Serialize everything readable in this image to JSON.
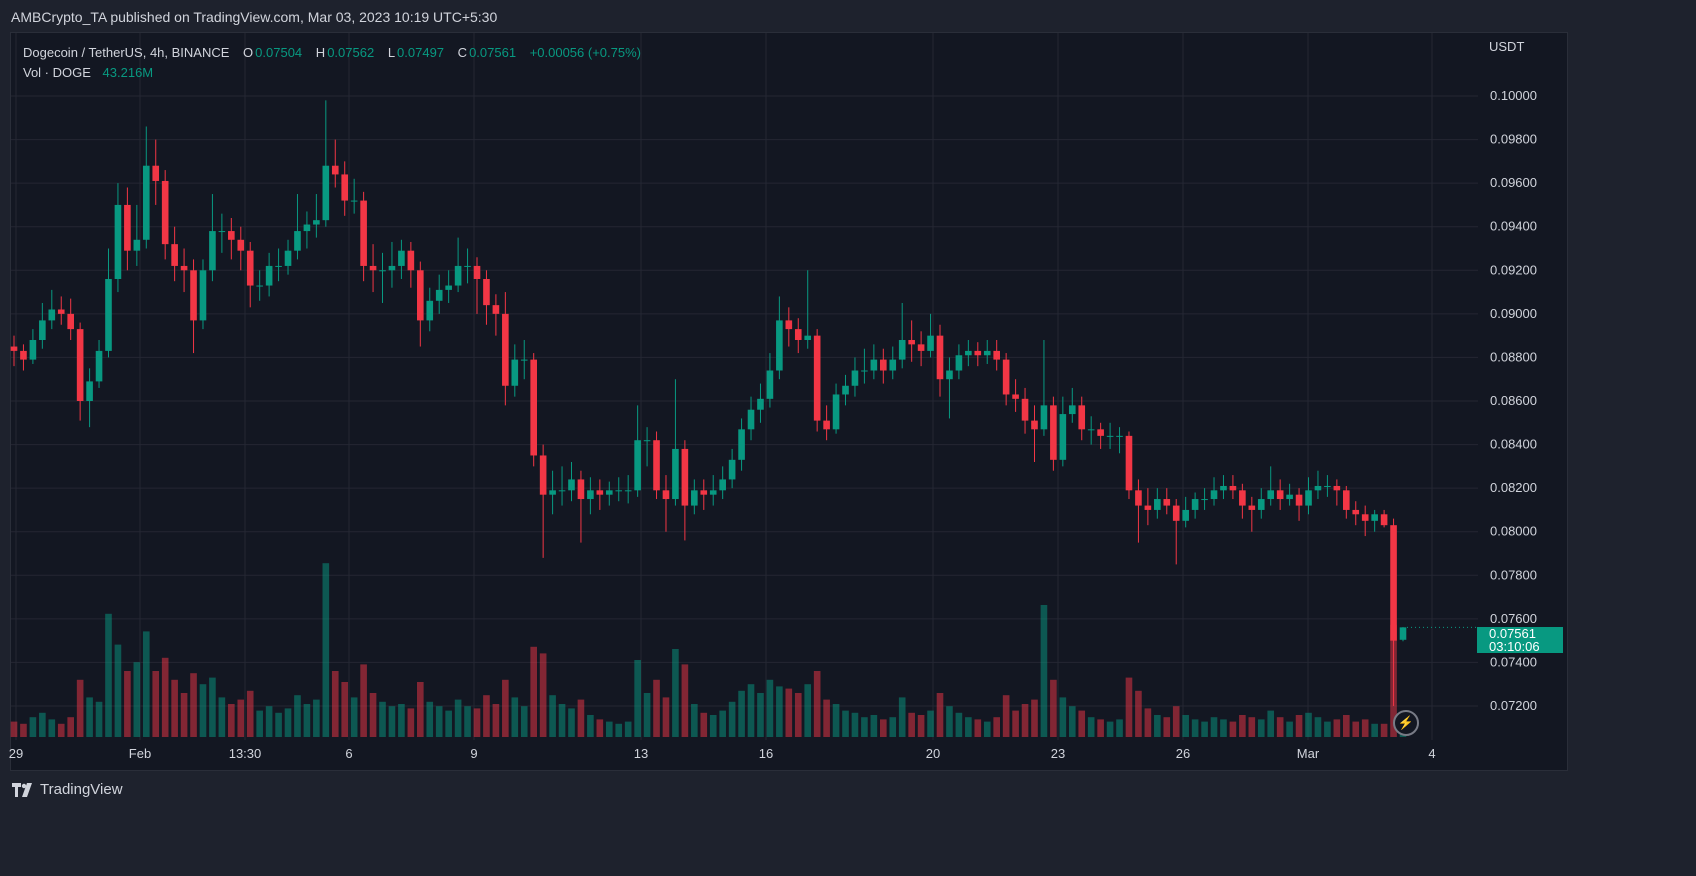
{
  "header": {
    "published": "AMBCrypto_TA published on TradingView.com, Mar 03, 2023 10:19 UTC+5:30"
  },
  "legend": {
    "symbol": "Dogecoin / TetherUS, 4h, BINANCE",
    "o_label": "O",
    "o": "0.07504",
    "h_label": "H",
    "h": "0.07562",
    "l_label": "L",
    "l": "0.07497",
    "c_label": "C",
    "c": "0.07561",
    "change": "+0.00056 (+0.75%)",
    "vol_label": "Vol · DOGE",
    "vol": "43.216M"
  },
  "price_axis": {
    "currency": "USDT",
    "current_price": "0.07561",
    "countdown": "03:10:06"
  },
  "footer": {
    "brand": "TradingView"
  },
  "colors": {
    "up": "#089981",
    "down": "#f23645",
    "background": "#131722",
    "grid": "#242733"
  },
  "icons": {
    "lightning": "lightning-icon",
    "logo": "tradingview-logo"
  },
  "chart_data": {
    "type": "candlestick",
    "title": "Dogecoin / TetherUS, 4h, BINANCE",
    "ylabel": "USDT",
    "ylim": [
      0.0707,
      0.1022
    ],
    "y_ticks": [
      "0.07200",
      "0.07400",
      "0.07600",
      "0.07800",
      "0.08000",
      "0.08200",
      "0.08400",
      "0.08600",
      "0.08800",
      "0.09000",
      "0.09200",
      "0.09400",
      "0.09600",
      "0.09800",
      "0.10000"
    ],
    "x_ticks": [
      "29",
      "Feb",
      "13:30",
      "6",
      "9",
      "13",
      "16",
      "20",
      "23",
      "26",
      "Mar",
      "4"
    ],
    "grid": true,
    "volume_unit": "M DOGE (approx.)",
    "candles_fields": [
      "open",
      "high",
      "low",
      "close",
      "volume"
    ],
    "candles": [
      [
        0.0885,
        0.089,
        0.0876,
        0.0883,
        70
      ],
      [
        0.0883,
        0.0886,
        0.0874,
        0.0879,
        60
      ],
      [
        0.0879,
        0.0893,
        0.0877,
        0.0888,
        90
      ],
      [
        0.0888,
        0.0905,
        0.0884,
        0.0897,
        110
      ],
      [
        0.0897,
        0.0911,
        0.0893,
        0.0902,
        80
      ],
      [
        0.0902,
        0.0908,
        0.0895,
        0.09,
        60
      ],
      [
        0.09,
        0.0907,
        0.0888,
        0.0893,
        90
      ],
      [
        0.0893,
        0.0896,
        0.0851,
        0.086,
        260
      ],
      [
        0.086,
        0.0875,
        0.0848,
        0.0869,
        180
      ],
      [
        0.0869,
        0.0888,
        0.0866,
        0.0883,
        160
      ],
      [
        0.0883,
        0.093,
        0.088,
        0.0916,
        560
      ],
      [
        0.0916,
        0.096,
        0.091,
        0.095,
        420
      ],
      [
        0.095,
        0.0958,
        0.092,
        0.0929,
        300
      ],
      [
        0.0929,
        0.095,
        0.0922,
        0.0934,
        340
      ],
      [
        0.0934,
        0.0986,
        0.093,
        0.0968,
        480
      ],
      [
        0.0968,
        0.098,
        0.095,
        0.0961,
        300
      ],
      [
        0.0961,
        0.0966,
        0.0925,
        0.0932,
        360
      ],
      [
        0.0932,
        0.094,
        0.0915,
        0.0922,
        260
      ],
      [
        0.0922,
        0.093,
        0.091,
        0.092,
        200
      ],
      [
        0.092,
        0.0925,
        0.0882,
        0.0897,
        290
      ],
      [
        0.0897,
        0.0925,
        0.0893,
        0.092,
        240
      ],
      [
        0.092,
        0.0955,
        0.0915,
        0.0938,
        270
      ],
      [
        0.0938,
        0.0946,
        0.0928,
        0.0938,
        180
      ],
      [
        0.0938,
        0.0944,
        0.0925,
        0.0934,
        150
      ],
      [
        0.0934,
        0.094,
        0.092,
        0.0929,
        170
      ],
      [
        0.0929,
        0.0933,
        0.0903,
        0.0913,
        210
      ],
      [
        0.0913,
        0.092,
        0.0906,
        0.0913,
        120
      ],
      [
        0.0913,
        0.0928,
        0.0908,
        0.0922,
        140
      ],
      [
        0.0922,
        0.093,
        0.0915,
        0.0922,
        110
      ],
      [
        0.0922,
        0.0934,
        0.0918,
        0.0929,
        130
      ],
      [
        0.0929,
        0.0955,
        0.0925,
        0.0938,
        190
      ],
      [
        0.0938,
        0.0947,
        0.093,
        0.0941,
        150
      ],
      [
        0.0941,
        0.0955,
        0.0935,
        0.0943,
        170
      ],
      [
        0.0943,
        0.0998,
        0.094,
        0.0968,
        790
      ],
      [
        0.0968,
        0.098,
        0.0958,
        0.0964,
        300
      ],
      [
        0.0964,
        0.097,
        0.0945,
        0.0952,
        250
      ],
      [
        0.0952,
        0.0962,
        0.0946,
        0.0952,
        180
      ],
      [
        0.0952,
        0.0956,
        0.0915,
        0.0922,
        330
      ],
      [
        0.0922,
        0.0932,
        0.091,
        0.092,
        200
      ],
      [
        0.092,
        0.0928,
        0.0905,
        0.092,
        160
      ],
      [
        0.092,
        0.0933,
        0.0912,
        0.0922,
        140
      ],
      [
        0.0922,
        0.0934,
        0.0916,
        0.0929,
        150
      ],
      [
        0.0929,
        0.0933,
        0.0912,
        0.092,
        130
      ],
      [
        0.092,
        0.0924,
        0.0885,
        0.0897,
        250
      ],
      [
        0.0897,
        0.0912,
        0.0892,
        0.0906,
        160
      ],
      [
        0.0906,
        0.0918,
        0.09,
        0.0911,
        140
      ],
      [
        0.0911,
        0.092,
        0.0905,
        0.0913,
        120
      ],
      [
        0.0913,
        0.0935,
        0.091,
        0.0922,
        170
      ],
      [
        0.0922,
        0.093,
        0.0914,
        0.0922,
        140
      ],
      [
        0.0922,
        0.0926,
        0.09,
        0.0916,
        130
      ],
      [
        0.0916,
        0.092,
        0.0895,
        0.0904,
        190
      ],
      [
        0.0904,
        0.0909,
        0.089,
        0.09,
        150
      ],
      [
        0.09,
        0.091,
        0.0858,
        0.0867,
        260
      ],
      [
        0.0867,
        0.0886,
        0.0862,
        0.0879,
        180
      ],
      [
        0.0879,
        0.0888,
        0.087,
        0.0879,
        140
      ],
      [
        0.0879,
        0.0882,
        0.083,
        0.0835,
        410
      ],
      [
        0.0835,
        0.084,
        0.0788,
        0.0817,
        380
      ],
      [
        0.0817,
        0.0828,
        0.0808,
        0.0819,
        190
      ],
      [
        0.0819,
        0.083,
        0.0812,
        0.0819,
        150
      ],
      [
        0.0819,
        0.0832,
        0.0814,
        0.0824,
        130
      ],
      [
        0.0824,
        0.0828,
        0.0795,
        0.0815,
        170
      ],
      [
        0.0815,
        0.0825,
        0.0808,
        0.0819,
        100
      ],
      [
        0.0819,
        0.0824,
        0.081,
        0.0817,
        80
      ],
      [
        0.0817,
        0.0823,
        0.0812,
        0.0819,
        70
      ],
      [
        0.0819,
        0.0825,
        0.0814,
        0.0819,
        60
      ],
      [
        0.0819,
        0.0826,
        0.0813,
        0.0819,
        70
      ],
      [
        0.0819,
        0.0858,
        0.0816,
        0.0842,
        350
      ],
      [
        0.0842,
        0.0848,
        0.083,
        0.0842,
        200
      ],
      [
        0.0842,
        0.0846,
        0.0815,
        0.0819,
        260
      ],
      [
        0.0819,
        0.0826,
        0.08,
        0.0815,
        180
      ],
      [
        0.0815,
        0.087,
        0.0812,
        0.0838,
        400
      ],
      [
        0.0838,
        0.0842,
        0.0796,
        0.0812,
        330
      ],
      [
        0.0812,
        0.0824,
        0.0808,
        0.0819,
        150
      ],
      [
        0.0819,
        0.0824,
        0.081,
        0.0817,
        110
      ],
      [
        0.0817,
        0.0826,
        0.0812,
        0.0819,
        100
      ],
      [
        0.0819,
        0.083,
        0.0815,
        0.0824,
        120
      ],
      [
        0.0824,
        0.0838,
        0.082,
        0.0833,
        160
      ],
      [
        0.0833,
        0.0852,
        0.0828,
        0.0847,
        210
      ],
      [
        0.0847,
        0.0862,
        0.0842,
        0.0856,
        240
      ],
      [
        0.0856,
        0.0868,
        0.085,
        0.0861,
        200
      ],
      [
        0.0861,
        0.0882,
        0.0857,
        0.0874,
        260
      ],
      [
        0.0874,
        0.0908,
        0.087,
        0.0897,
        230
      ],
      [
        0.0897,
        0.0903,
        0.0885,
        0.0893,
        220
      ],
      [
        0.0893,
        0.0898,
        0.0882,
        0.0888,
        200
      ],
      [
        0.0888,
        0.092,
        0.0884,
        0.089,
        240
      ],
      [
        0.089,
        0.0893,
        0.0846,
        0.0851,
        300
      ],
      [
        0.0851,
        0.0858,
        0.0842,
        0.0847,
        170
      ],
      [
        0.0847,
        0.0868,
        0.0845,
        0.0863,
        150
      ],
      [
        0.0863,
        0.0872,
        0.0858,
        0.0867,
        120
      ],
      [
        0.0867,
        0.088,
        0.0862,
        0.0874,
        110
      ],
      [
        0.0874,
        0.0884,
        0.0868,
        0.0874,
        90
      ],
      [
        0.0874,
        0.0886,
        0.087,
        0.0879,
        100
      ],
      [
        0.0879,
        0.0884,
        0.0868,
        0.0874,
        80
      ],
      [
        0.0874,
        0.0885,
        0.087,
        0.0879,
        90
      ],
      [
        0.0879,
        0.0905,
        0.0875,
        0.0888,
        180
      ],
      [
        0.0888,
        0.0897,
        0.0878,
        0.0886,
        110
      ],
      [
        0.0886,
        0.0892,
        0.0876,
        0.0883,
        100
      ],
      [
        0.0883,
        0.09,
        0.088,
        0.089,
        120
      ],
      [
        0.089,
        0.0895,
        0.0862,
        0.087,
        200
      ],
      [
        0.087,
        0.088,
        0.0852,
        0.0874,
        140
      ],
      [
        0.0874,
        0.0886,
        0.087,
        0.0881,
        110
      ],
      [
        0.0881,
        0.0888,
        0.0876,
        0.0883,
        90
      ],
      [
        0.0883,
        0.0887,
        0.0876,
        0.0881,
        80
      ],
      [
        0.0881,
        0.0888,
        0.0877,
        0.0883,
        70
      ],
      [
        0.0883,
        0.0888,
        0.0874,
        0.0879,
        90
      ],
      [
        0.0879,
        0.0882,
        0.0858,
        0.0863,
        190
      ],
      [
        0.0863,
        0.087,
        0.0855,
        0.0861,
        120
      ],
      [
        0.0861,
        0.0866,
        0.0845,
        0.0851,
        150
      ],
      [
        0.0851,
        0.0858,
        0.0832,
        0.0847,
        170
      ],
      [
        0.0847,
        0.0888,
        0.0844,
        0.0858,
        600
      ],
      [
        0.0858,
        0.0862,
        0.0828,
        0.0833,
        260
      ],
      [
        0.0833,
        0.0862,
        0.083,
        0.0854,
        180
      ],
      [
        0.0854,
        0.0866,
        0.085,
        0.0858,
        140
      ],
      [
        0.0858,
        0.0862,
        0.0842,
        0.0847,
        120
      ],
      [
        0.0847,
        0.0853,
        0.084,
        0.0847,
        90
      ],
      [
        0.0847,
        0.085,
        0.0838,
        0.0844,
        80
      ],
      [
        0.0844,
        0.085,
        0.0838,
        0.0844,
        70
      ],
      [
        0.0844,
        0.0848,
        0.0836,
        0.0844,
        80
      ],
      [
        0.0844,
        0.0846,
        0.0815,
        0.0819,
        270
      ],
      [
        0.0819,
        0.0824,
        0.0795,
        0.0812,
        210
      ],
      [
        0.0812,
        0.082,
        0.0803,
        0.081,
        130
      ],
      [
        0.081,
        0.082,
        0.0806,
        0.0815,
        100
      ],
      [
        0.0815,
        0.082,
        0.0808,
        0.0812,
        90
      ],
      [
        0.0812,
        0.0815,
        0.0785,
        0.0805,
        140
      ],
      [
        0.0805,
        0.0816,
        0.0802,
        0.081,
        100
      ],
      [
        0.081,
        0.0818,
        0.0806,
        0.0815,
        80
      ],
      [
        0.0815,
        0.082,
        0.081,
        0.0815,
        70
      ],
      [
        0.0815,
        0.0825,
        0.0812,
        0.0819,
        90
      ],
      [
        0.0819,
        0.0826,
        0.0815,
        0.0821,
        80
      ],
      [
        0.0821,
        0.0826,
        0.0815,
        0.0819,
        70
      ],
      [
        0.0819,
        0.0822,
        0.0806,
        0.0812,
        100
      ],
      [
        0.0812,
        0.0816,
        0.08,
        0.081,
        90
      ],
      [
        0.081,
        0.082,
        0.0806,
        0.0815,
        80
      ],
      [
        0.0815,
        0.083,
        0.0812,
        0.0819,
        120
      ],
      [
        0.0819,
        0.0824,
        0.081,
        0.0815,
        90
      ],
      [
        0.0815,
        0.0822,
        0.0812,
        0.0817,
        70
      ],
      [
        0.0817,
        0.082,
        0.0805,
        0.0812,
        100
      ],
      [
        0.0812,
        0.0825,
        0.0808,
        0.0819,
        110
      ],
      [
        0.0819,
        0.0828,
        0.0815,
        0.0821,
        90
      ],
      [
        0.0821,
        0.0826,
        0.0816,
        0.0821,
        70
      ],
      [
        0.0821,
        0.0824,
        0.0812,
        0.0819,
        80
      ],
      [
        0.0819,
        0.0821,
        0.0806,
        0.081,
        100
      ],
      [
        0.081,
        0.0814,
        0.0803,
        0.0808,
        70
      ],
      [
        0.0808,
        0.0812,
        0.0798,
        0.0805,
        80
      ],
      [
        0.0805,
        0.081,
        0.08,
        0.0808,
        60
      ],
      [
        0.0808,
        0.081,
        0.0802,
        0.0803,
        60
      ],
      [
        0.0803,
        0.0806,
        0.072,
        0.075,
        510
      ],
      [
        0.07504,
        0.07562,
        0.07497,
        0.07561,
        43.216
      ]
    ]
  }
}
